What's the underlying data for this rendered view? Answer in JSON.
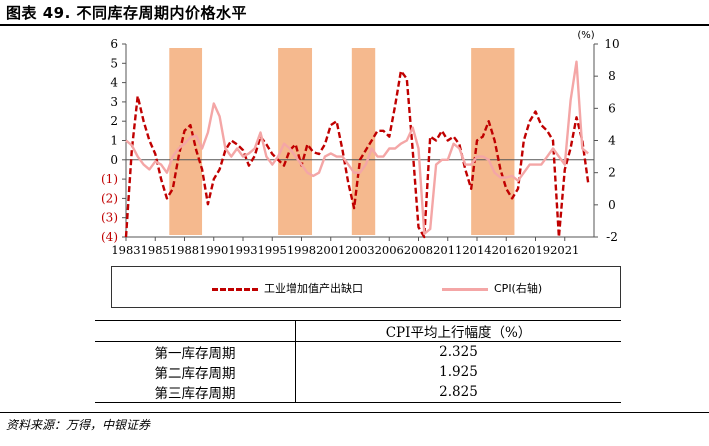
{
  "title": "图表 49. 不同库存周期内价格水平",
  "source": "资料来源：万得，中银证券",
  "colors": {
    "industrial": "#c00000",
    "cpi": "#f4a6a6",
    "shade": "#f5b98e"
  },
  "chart_data": {
    "type": "line",
    "x_unit": "year",
    "xlim": [
      1983,
      2023
    ],
    "x_tick_labels": [
      "1983",
      "1985",
      "1988",
      "1990",
      "1993",
      "1995",
      "1998",
      "2001",
      "2003",
      "2006",
      "2008",
      "2011",
      "2014",
      "2016",
      "2019",
      "2021"
    ],
    "x_tick_values": [
      1983,
      1985.5,
      1988,
      1990.5,
      1993,
      1995.5,
      1998,
      2000.5,
      2003,
      2005.5,
      2008,
      2010.5,
      2013,
      2015.5,
      2018,
      2020.5
    ],
    "left_axis": {
      "ylim": [
        -4,
        6
      ],
      "tick_labels": [
        "(4)",
        "(3)",
        "(2)",
        "(1)",
        "0",
        "1",
        "2",
        "3",
        "4",
        "5",
        "6"
      ]
    },
    "right_axis": {
      "unit_label": "(%)",
      "ylim": [
        -2,
        10
      ],
      "tick_labels": [
        "-2",
        "0",
        "2",
        "4",
        "6",
        "8",
        "10"
      ]
    },
    "shaded_periods": [
      [
        1986.7,
        1989.5
      ],
      [
        1996.0,
        1998.9
      ],
      [
        2002.3,
        2004.3
      ],
      [
        2012.5,
        2016.2
      ]
    ],
    "series": [
      {
        "name": "工业增加值产出缺口",
        "axis": "left",
        "style": "dashed",
        "x": [
          1983,
          1983.5,
          1984,
          1984.5,
          1985,
          1985.5,
          1986,
          1986.5,
          1987,
          1987.5,
          1988,
          1988.5,
          1989,
          1989.5,
          1990,
          1990.5,
          1991,
          1991.5,
          1992,
          1992.5,
          1993,
          1993.5,
          1994,
          1994.5,
          1995,
          1995.5,
          1996,
          1996.5,
          1997,
          1997.5,
          1998,
          1998.5,
          1999,
          1999.5,
          2000,
          2000.5,
          2001,
          2001.5,
          2002,
          2002.5,
          2003,
          2003.5,
          2004,
          2004.5,
          2005,
          2005.5,
          2006,
          2006.5,
          2007,
          2007.5,
          2008,
          2008.5,
          2009,
          2009.5,
          2010,
          2010.5,
          2011,
          2011.5,
          2012,
          2012.5,
          2013,
          2013.5,
          2014,
          2014.5,
          2015,
          2015.5,
          2016,
          2016.5,
          2017,
          2017.5,
          2018,
          2018.5,
          2019,
          2019.5,
          2020,
          2020.5,
          2021,
          2021.5,
          2022,
          2022.5
        ],
        "y": [
          -4,
          0.5,
          3.3,
          2.0,
          1.0,
          0.3,
          -1.0,
          -2.0,
          -1.5,
          0.2,
          1.5,
          1.8,
          0.5,
          -0.5,
          -2.3,
          -1.0,
          -0.5,
          0.5,
          1.0,
          0.8,
          0.5,
          -0.3,
          0.2,
          1.2,
          0.8,
          0.3,
          0,
          -0.3,
          0.5,
          0.8,
          -0.3,
          0.8,
          0.4,
          0.3,
          0.8,
          1.8,
          2.0,
          0.5,
          -1.2,
          -2.5,
          0.0,
          0.5,
          1.0,
          1.5,
          1.5,
          1.2,
          2.8,
          4.6,
          4.2,
          0.5,
          -3.5,
          -4,
          1.2,
          1.0,
          1.5,
          1.0,
          1.2,
          0.8,
          -0.5,
          -1.5,
          1.0,
          1.2,
          2.0,
          1.0,
          -0.5,
          -1.5,
          -2.0,
          -1.5,
          1.0,
          2.0,
          2.5,
          1.8,
          1.5,
          1.0,
          -4,
          -0.5,
          0.6,
          2.2,
          1.0,
          -1.2
        ]
      },
      {
        "name": "CPI(右轴)",
        "axis": "right",
        "style": "solid",
        "x": [
          1983,
          1983.5,
          1984,
          1984.5,
          1985,
          1985.5,
          1986,
          1986.5,
          1987,
          1987.5,
          1988,
          1988.5,
          1989,
          1989.5,
          1990,
          1990.5,
          1991,
          1991.5,
          1992,
          1992.5,
          1993,
          1993.5,
          1994,
          1994.5,
          1995,
          1995.5,
          1996,
          1996.5,
          1997,
          1997.5,
          1998,
          1998.5,
          1999,
          1999.5,
          2000,
          2000.5,
          2001,
          2001.5,
          2002,
          2002.5,
          2003,
          2003.5,
          2004,
          2004.5,
          2005,
          2005.5,
          2006,
          2006.5,
          2007,
          2007.5,
          2008,
          2008.5,
          2009,
          2009.5,
          2010,
          2010.5,
          2011,
          2011.5,
          2012,
          2012.5,
          2013,
          2013.5,
          2014,
          2014.5,
          2015,
          2015.5,
          2016,
          2016.5,
          2017,
          2017.5,
          2018,
          2018.5,
          2019,
          2019.5,
          2020,
          2020.5,
          2021,
          2021.5,
          2022,
          2022.5
        ],
        "y": [
          4,
          3.7,
          3.0,
          2.5,
          2.2,
          2.7,
          2.5,
          2.0,
          3.0,
          3.5,
          3.8,
          4.2,
          4.3,
          3.5,
          4.5,
          6.3,
          5.5,
          3.5,
          3.0,
          3.5,
          3.0,
          3.2,
          3.5,
          4.5,
          3.0,
          2.5,
          3.0,
          3.8,
          3.5,
          3.0,
          2.5,
          2.0,
          1.8,
          2.0,
          3.0,
          3.2,
          3.0,
          3.0,
          2.5,
          2.0,
          2.0,
          2.5,
          3.5,
          3.0,
          3.0,
          3.5,
          3.5,
          3.8,
          4.0,
          4.8,
          3.5,
          -1.8,
          -1.5,
          2.5,
          2.8,
          2.8,
          3.8,
          3.5,
          2.5,
          2.5,
          3.0,
          3.0,
          2.8,
          2.0,
          1.7,
          1.7,
          1.8,
          1.5,
          2.0,
          2.5,
          2.5,
          2.5,
          3.0,
          3.5,
          3.0,
          2.5,
          6.5,
          8.9,
          3.5,
          3.2
        ]
      }
    ]
  },
  "legend": {
    "industrial_label": "工业增加值产出缺口",
    "cpi_label": "CPI(右轴)"
  },
  "table": {
    "header": [
      "",
      "CPI平均上行幅度（%）"
    ],
    "rows": [
      [
        "第一库存周期",
        "2.325"
      ],
      [
        "第二库存周期",
        "1.925"
      ],
      [
        "第三库存周期",
        "2.825"
      ]
    ]
  }
}
